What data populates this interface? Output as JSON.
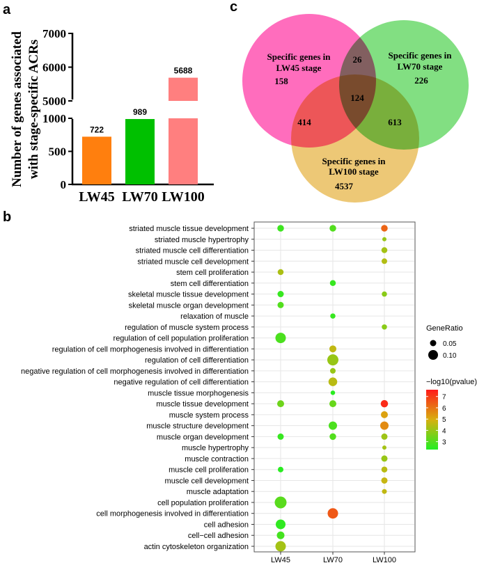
{
  "panels": {
    "a": "a",
    "b": "b",
    "c": "c"
  },
  "chart_data": [
    {
      "id": "bar",
      "type": "bar",
      "panel": "a",
      "categories": [
        "LW45",
        "LW70",
        "LW100"
      ],
      "values": [
        722,
        989,
        5688
      ],
      "value_labels": [
        "722",
        "989",
        "5688"
      ],
      "colors": [
        "#ff7f0e",
        "#00c000",
        "#ff7f7f"
      ],
      "ylabel_lines": [
        "Number of genes associated",
        "with stage-specific ACRs"
      ],
      "axis_break": [
        1000,
        5000
      ],
      "lower_ticks": [
        0,
        500,
        1000
      ],
      "lower_tick_labels": [
        "0",
        "500",
        "1000"
      ],
      "upper_ticks": [
        5000,
        6000,
        7000
      ],
      "upper_tick_labels": [
        "5000",
        "6000",
        "7000"
      ]
    },
    {
      "id": "venn",
      "type": "venn",
      "panel": "c",
      "sets": [
        {
          "name": "LW45",
          "label_lines": [
            "Specific genes in",
            "LW45 stage"
          ],
          "only": "158",
          "color": "#ff44aa"
        },
        {
          "name": "LW70",
          "label_lines": [
            "Specific genes in",
            "LW70 stage"
          ],
          "only": "226",
          "color": "#5fd65f"
        },
        {
          "name": "LW100",
          "label_lines": [
            "Specific genes in",
            "LW100 stage"
          ],
          "only": "4537",
          "color": "#e8b850"
        }
      ],
      "intersections": {
        "LW45_LW70": "26",
        "LW45_LW100": "414",
        "LW70_LW100": "613",
        "all": "124"
      }
    },
    {
      "id": "dot",
      "type": "scatter",
      "panel": "b",
      "x_categories": [
        "LW45",
        "LW70",
        "LW100"
      ],
      "terms": [
        "striated muscle tissue development",
        "striated muscle hypertrophy",
        "striated muscle cell differentiation",
        "striated muscle cell development",
        "stem cell proliferation",
        "stem cell differentiation",
        "skeletal muscle tissue development",
        "skeletal muscle organ development",
        "relaxation of muscle",
        "regulation of muscle system process",
        "regulation of cell population proliferation",
        "regulation of cell morphogenesis involved in differentiation",
        "regulation of cell differentiation",
        "negative regulation of cell morphogenesis involved in differentiation",
        "negative regulation of cell differentiation",
        "muscle tissue morphogenesis",
        "muscle tissue development",
        "muscle system process",
        "muscle structure development",
        "muscle organ development",
        "muscle hypertrophy",
        "muscle contraction",
        "muscle cell proliferation",
        "muscle cell development",
        "muscle adaptation",
        "cell population proliferation",
        "cell morphogenesis involved in differentiation",
        "cell adhesion",
        "cell−cell adhesion",
        "actin cytoskeleton organization"
      ],
      "points": [
        {
          "term": "striated muscle tissue development",
          "x": "LW45",
          "ratio": 0.055,
          "logp": 2.7
        },
        {
          "term": "striated muscle tissue development",
          "x": "LW70",
          "ratio": 0.055,
          "logp": 3.0
        },
        {
          "term": "striated muscle tissue development",
          "x": "LW100",
          "ratio": 0.055,
          "logp": 6.3
        },
        {
          "term": "striated muscle hypertrophy",
          "x": "LW100",
          "ratio": 0.02,
          "logp": 4.0
        },
        {
          "term": "striated muscle cell differentiation",
          "x": "LW100",
          "ratio": 0.045,
          "logp": 4.2
        },
        {
          "term": "striated muscle cell development",
          "x": "LW100",
          "ratio": 0.04,
          "logp": 4.4
        },
        {
          "term": "stem cell proliferation",
          "x": "LW45",
          "ratio": 0.045,
          "logp": 4.3
        },
        {
          "term": "stem cell differentiation",
          "x": "LW70",
          "ratio": 0.045,
          "logp": 2.6
        },
        {
          "term": "skeletal muscle tissue development",
          "x": "LW45",
          "ratio": 0.05,
          "logp": 2.6
        },
        {
          "term": "skeletal muscle tissue development",
          "x": "LW100",
          "ratio": 0.035,
          "logp": 3.8
        },
        {
          "term": "skeletal muscle organ development",
          "x": "LW45",
          "ratio": 0.05,
          "logp": 3.0
        },
        {
          "term": "relaxation of muscle",
          "x": "LW70",
          "ratio": 0.035,
          "logp": 2.6
        },
        {
          "term": "regulation of muscle system process",
          "x": "LW100",
          "ratio": 0.035,
          "logp": 3.8
        },
        {
          "term": "regulation of cell population proliferation",
          "x": "LW45",
          "ratio": 0.11,
          "logp": 2.9
        },
        {
          "term": "regulation of cell morphogenesis involved in differentiation",
          "x": "LW70",
          "ratio": 0.06,
          "logp": 4.6
        },
        {
          "term": "regulation of cell differentiation",
          "x": "LW70",
          "ratio": 0.12,
          "logp": 4.0
        },
        {
          "term": "negative regulation of cell morphogenesis involved in differentiation",
          "x": "LW70",
          "ratio": 0.04,
          "logp": 4.0
        },
        {
          "term": "negative regulation of cell differentiation",
          "x": "LW70",
          "ratio": 0.085,
          "logp": 4.5
        },
        {
          "term": "muscle tissue morphogenesis",
          "x": "LW70",
          "ratio": 0.025,
          "logp": 2.4
        },
        {
          "term": "muscle tissue development",
          "x": "LW45",
          "ratio": 0.06,
          "logp": 3.4
        },
        {
          "term": "muscle tissue development",
          "x": "LW70",
          "ratio": 0.06,
          "logp": 3.3
        },
        {
          "term": "muscle tissue development",
          "x": "LW100",
          "ratio": 0.065,
          "logp": 7.3
        },
        {
          "term": "muscle system process",
          "x": "LW100",
          "ratio": 0.06,
          "logp": 5.2
        },
        {
          "term": "muscle structure development",
          "x": "LW70",
          "ratio": 0.08,
          "logp": 2.9
        },
        {
          "term": "muscle structure development",
          "x": "LW100",
          "ratio": 0.08,
          "logp": 5.6
        },
        {
          "term": "muscle organ development",
          "x": "LW45",
          "ratio": 0.05,
          "logp": 2.6
        },
        {
          "term": "muscle organ development",
          "x": "LW70",
          "ratio": 0.055,
          "logp": 3.0
        },
        {
          "term": "muscle organ development",
          "x": "LW100",
          "ratio": 0.05,
          "logp": 4.1
        },
        {
          "term": "muscle hypertrophy",
          "x": "LW100",
          "ratio": 0.02,
          "logp": 4.2
        },
        {
          "term": "muscle contraction",
          "x": "LW100",
          "ratio": 0.05,
          "logp": 4.0
        },
        {
          "term": "muscle cell proliferation",
          "x": "LW45",
          "ratio": 0.04,
          "logp": 2.4
        },
        {
          "term": "muscle cell proliferation",
          "x": "LW100",
          "ratio": 0.045,
          "logp": 4.5
        },
        {
          "term": "muscle cell development",
          "x": "LW100",
          "ratio": 0.05,
          "logp": 4.7
        },
        {
          "term": "muscle adaptation",
          "x": "LW100",
          "ratio": 0.03,
          "logp": 4.6
        },
        {
          "term": "cell population proliferation",
          "x": "LW45",
          "ratio": 0.13,
          "logp": 3.1
        },
        {
          "term": "cell morphogenesis involved in differentiation",
          "x": "LW70",
          "ratio": 0.11,
          "logp": 6.5
        },
        {
          "term": "cell adhesion",
          "x": "LW45",
          "ratio": 0.1,
          "logp": 2.5
        },
        {
          "term": "cell−cell adhesion",
          "x": "LW45",
          "ratio": 0.07,
          "logp": 2.8
        },
        {
          "term": "actin cytoskeleton organization",
          "x": "LW45",
          "ratio": 0.11,
          "logp": 4.2
        }
      ],
      "size_legend": {
        "title": "GeneRatio",
        "values": [
          0.05,
          0.1
        ],
        "labels": [
          "0.05",
          "0.10"
        ]
      },
      "color_legend": {
        "title": "−log10(pvalue)",
        "ticks": [
          3,
          4,
          5,
          6,
          7
        ],
        "tick_labels": [
          "3",
          "4",
          "5",
          "6",
          "7"
        ],
        "range": [
          2.3,
          7.6
        ],
        "low_color": "#22ee22",
        "high_color": "#ff1a1a"
      }
    }
  ]
}
